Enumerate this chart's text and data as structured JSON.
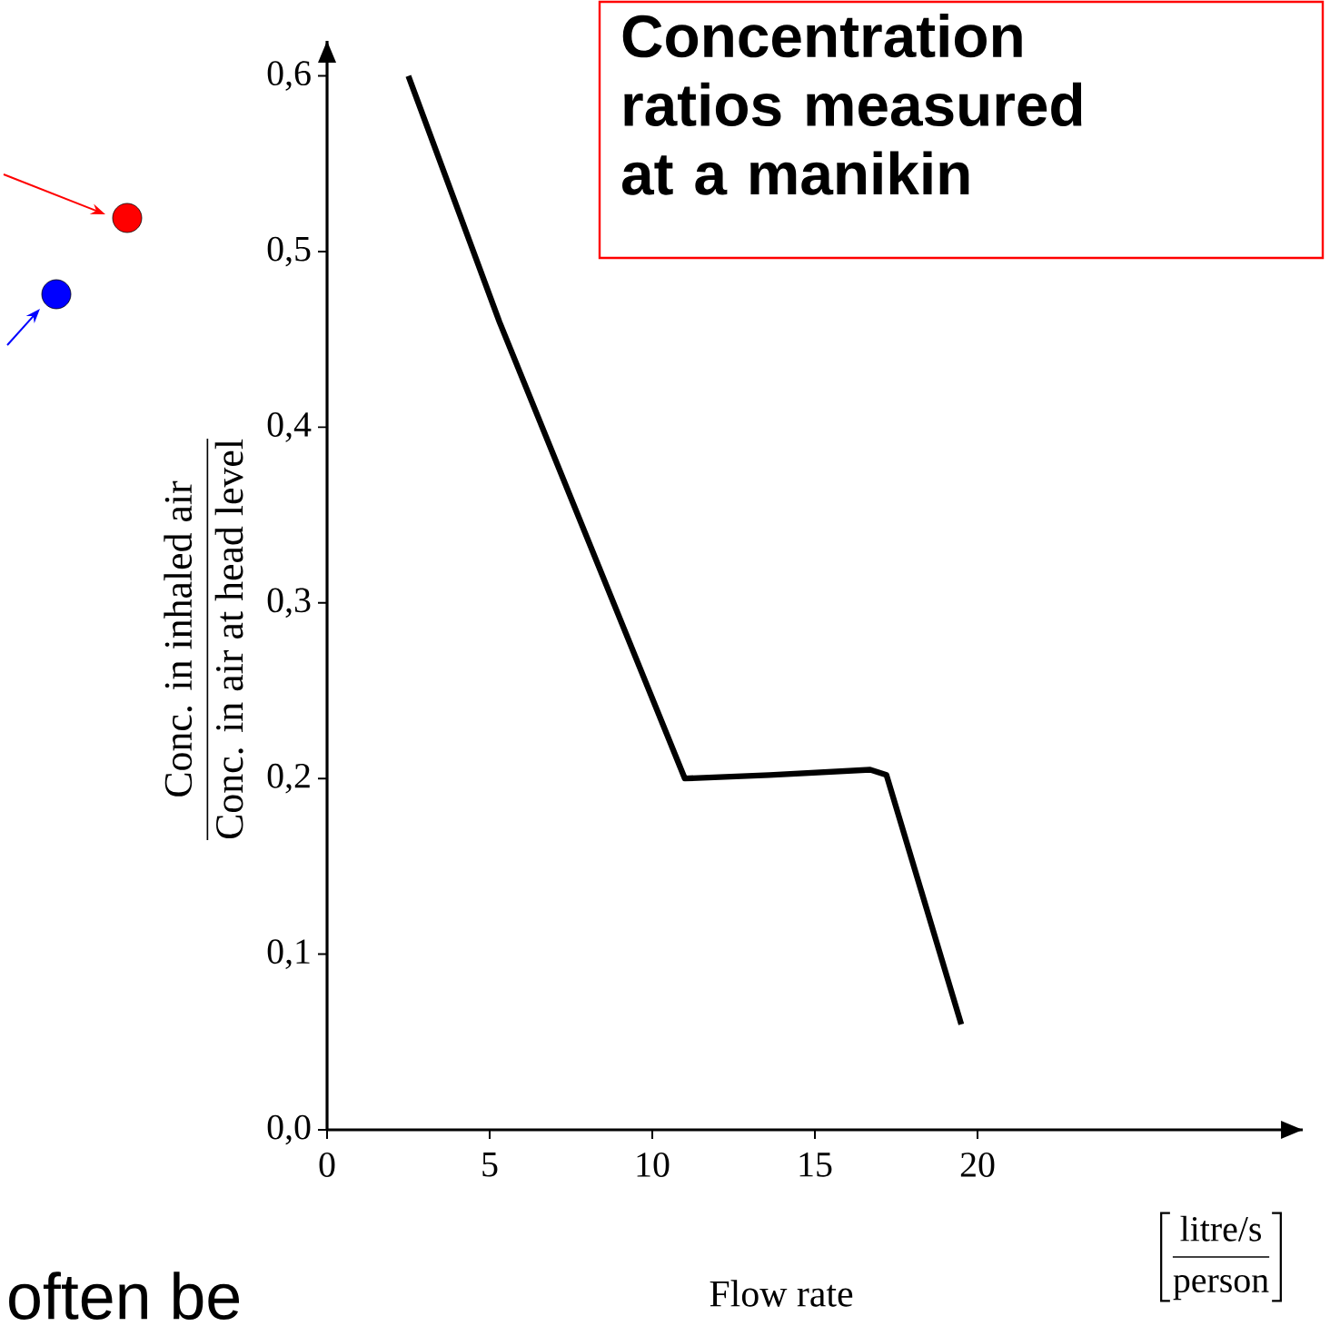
{
  "chart_data": {
    "type": "line",
    "title": "Concentration ratios measured at a manikin",
    "xlabel": "Flow rate",
    "ylabel": "\\frac{\\text{Conc. in inhaled air}}{\\text{Conc. in air at head level}}",
    "annotations": [
      "\\left[\\frac{\\text{litre/s}}{\\text{person}}\\right]",
      "often be"
    ],
    "x": [
      2.5,
      5.3,
      11,
      13.6,
      16.7,
      17.2,
      19.5
    ],
    "values": [
      0.6,
      0.46,
      0.2,
      0.202,
      0.205,
      0.202,
      0.06
    ],
    "color": "#000000",
    "line_style": "solid",
    "marker": "none",
    "xlim": [
      0,
      30
    ],
    "ylim": [
      0,
      0.62
    ],
    "xticks": [
      0,
      5,
      10,
      15,
      20
    ],
    "yticks": [
      {
        "value": 0,
        "label": "0,0"
      },
      {
        "value": 0.1,
        "label": "0,1"
      },
      {
        "value": 0.2,
        "label": "0,2"
      },
      {
        "value": 0.3,
        "label": "0,3"
      },
      {
        "value": 0.4,
        "label": "0,4"
      },
      {
        "value": 0.5,
        "label": "0,5"
      },
      {
        "value": 0.6,
        "label": "0,6"
      }
    ]
  }
}
